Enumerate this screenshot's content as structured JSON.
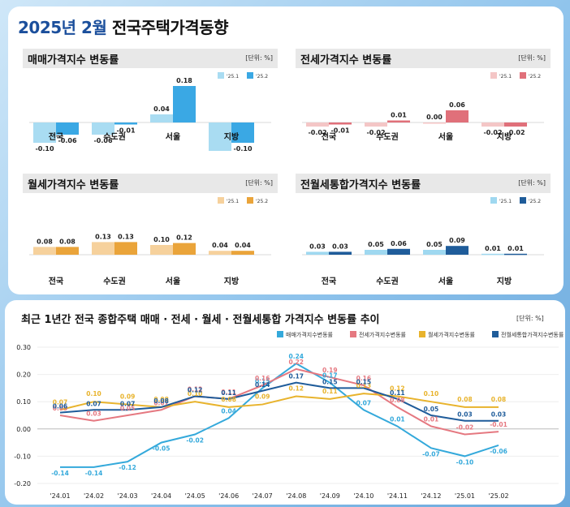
{
  "title_year": "2025년 2월",
  "title_rest": "전국주택가격동향",
  "unit": "[단위: %]",
  "bar_charts": [
    {
      "title": "매매가격지수 변동률",
      "legend": [
        "'25.1",
        "'25.2"
      ],
      "colors": [
        "#a9dcf2",
        "#3aa8e4"
      ]
    },
    {
      "title": "전세가격지수 변동률",
      "legend": [
        "'25.1",
        "'25.2"
      ],
      "colors": [
        "#f4c6c6",
        "#e0707a"
      ]
    },
    {
      "title": "월세가격지수 변동률",
      "legend": [
        "'25.1",
        "'25.2"
      ],
      "colors": [
        "#f6d19c",
        "#eaa43a"
      ]
    },
    {
      "title": "전월세통합가격지수 변동률",
      "legend": [
        "'25.1",
        "'25.2"
      ],
      "colors": [
        "#9fd8f0",
        "#1f5c9a"
      ]
    }
  ],
  "line_chart": {
    "title": "최근 1년간 전국 종합주택 매매 · 전세 · 월세 · 전월세통합 가격지수 변동률 추이",
    "legend": [
      "매매가격지수변동률",
      "전세가격지수변동률",
      "월세가격지수변동률",
      "전월세통합가격지수변동률"
    ]
  },
  "chart_data": [
    {
      "type": "bar",
      "title": "매매가격지수 변동률",
      "categories": [
        "전국",
        "수도권",
        "서울",
        "지방"
      ],
      "series": [
        {
          "name": "'25.1",
          "values": [
            -0.1,
            -0.06,
            0.04,
            -0.14
          ]
        },
        {
          "name": "'25.2",
          "values": [
            -0.06,
            -0.01,
            0.18,
            -0.1
          ]
        }
      ]
    },
    {
      "type": "bar",
      "title": "전세가격지수 변동률",
      "categories": [
        "전국",
        "수도권",
        "서울",
        "지방"
      ],
      "series": [
        {
          "name": "'25.1",
          "values": [
            -0.02,
            -0.02,
            0.0,
            -0.02
          ]
        },
        {
          "name": "'25.2",
          "values": [
            -0.01,
            0.01,
            0.06,
            -0.02
          ]
        }
      ]
    },
    {
      "type": "bar",
      "title": "월세가격지수 변동률",
      "categories": [
        "전국",
        "수도권",
        "서울",
        "지방"
      ],
      "series": [
        {
          "name": "'25.1",
          "values": [
            0.08,
            0.13,
            0.1,
            0.04
          ]
        },
        {
          "name": "'25.2",
          "values": [
            0.08,
            0.13,
            0.12,
            0.04
          ]
        }
      ]
    },
    {
      "type": "bar",
      "title": "전월세통합가격지수 변동률",
      "categories": [
        "전국",
        "수도권",
        "서울",
        "지방"
      ],
      "series": [
        {
          "name": "'25.1",
          "values": [
            0.03,
            0.05,
            0.05,
            0.01
          ]
        },
        {
          "name": "'25.2",
          "values": [
            0.03,
            0.06,
            0.09,
            0.01
          ]
        }
      ]
    },
    {
      "type": "line",
      "title": "최근 1년간 전국 종합주택 매매 · 전세 · 월세 · 전월세통합 가격지수 변동률 추이",
      "x": [
        "'24.01",
        "'24.02",
        "'24.03",
        "'24.04",
        "'24.05",
        "'24.06",
        "'24.07",
        "'24.08",
        "'24.09",
        "'24.10",
        "'24.11",
        "'24.12",
        "'25.01",
        "'25.02"
      ],
      "ylim": [
        -0.2,
        0.3
      ],
      "yticks": [
        "0.30",
        "0.20",
        "0.10",
        "0.00",
        "-0.10",
        "-0.20"
      ],
      "series": [
        {
          "name": "매매가격지수변동률",
          "color": "#34a9db",
          "values": [
            -0.14,
            -0.14,
            -0.12,
            -0.05,
            -0.02,
            0.04,
            0.15,
            0.24,
            0.17,
            0.07,
            0.01,
            -0.07,
            -0.1,
            -0.06
          ]
        },
        {
          "name": "전세가격지수변동률",
          "color": "#e57880",
          "values": [
            0.05,
            0.03,
            0.05,
            0.07,
            0.12,
            0.11,
            0.16,
            0.22,
            0.19,
            0.16,
            0.08,
            0.01,
            -0.02,
            -0.01
          ]
        },
        {
          "name": "월세가격지수변동률",
          "color": "#e8b32c",
          "values": [
            0.07,
            0.1,
            0.09,
            0.08,
            0.1,
            0.08,
            0.09,
            0.12,
            0.11,
            0.13,
            0.12,
            0.1,
            0.08,
            0.08
          ]
        },
        {
          "name": "전월세통합가격지수변동률",
          "color": "#1f5c9a",
          "values": [
            0.06,
            0.07,
            0.07,
            0.08,
            0.12,
            0.11,
            0.14,
            0.17,
            0.15,
            0.15,
            0.11,
            0.05,
            0.03,
            0.03
          ]
        }
      ]
    }
  ]
}
